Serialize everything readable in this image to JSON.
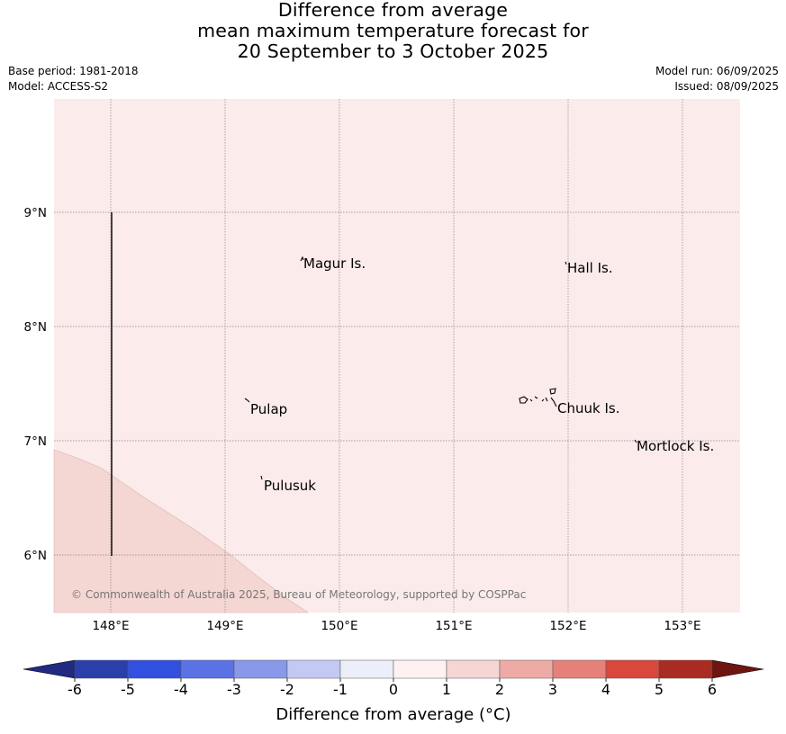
{
  "title": {
    "line1": "Difference from average",
    "line2": "mean maximum temperature forecast for",
    "line3": "20 September to 3 October 2025"
  },
  "meta": {
    "base_period": "Base period: 1981-2018",
    "model": "Model: ACCESS-S2",
    "model_run": "Model run: 06/09/2025",
    "issued": "Issued: 08/09/2025"
  },
  "map": {
    "lon_ticks": [
      "148°E",
      "149°E",
      "150°E",
      "151°E",
      "152°E",
      "153°E"
    ],
    "lat_ticks": [
      "9°N",
      "8°N",
      "7°N",
      "6°N"
    ],
    "places": [
      "Magur Is.",
      "Hall Is.",
      "Pulap",
      "Chuuk Is.",
      "Mortlock Is.",
      "Pulusuk"
    ],
    "copyright": "© Commonwealth of Australia 2025, Bureau of Meteorology, supported by COSPPac",
    "background_color": "#fbebea",
    "warm_region_color": "#f4d6d3"
  },
  "colorbar": {
    "ticks": [
      "-6",
      "-5",
      "-4",
      "-3",
      "-2",
      "-1",
      "0",
      "1",
      "2",
      "3",
      "4",
      "5",
      "6"
    ],
    "colors": [
      "#2a3faa",
      "#3250e0",
      "#5b72e4",
      "#8898ea",
      "#c2c9f3",
      "#eceef9",
      "#fdf2f1",
      "#f5d6d2",
      "#eeaba6",
      "#e6807a",
      "#d9473d",
      "#a92b22"
    ],
    "under_color": "#1f2a80",
    "over_color": "#6e1510",
    "label": "Difference from average (°C)"
  }
}
